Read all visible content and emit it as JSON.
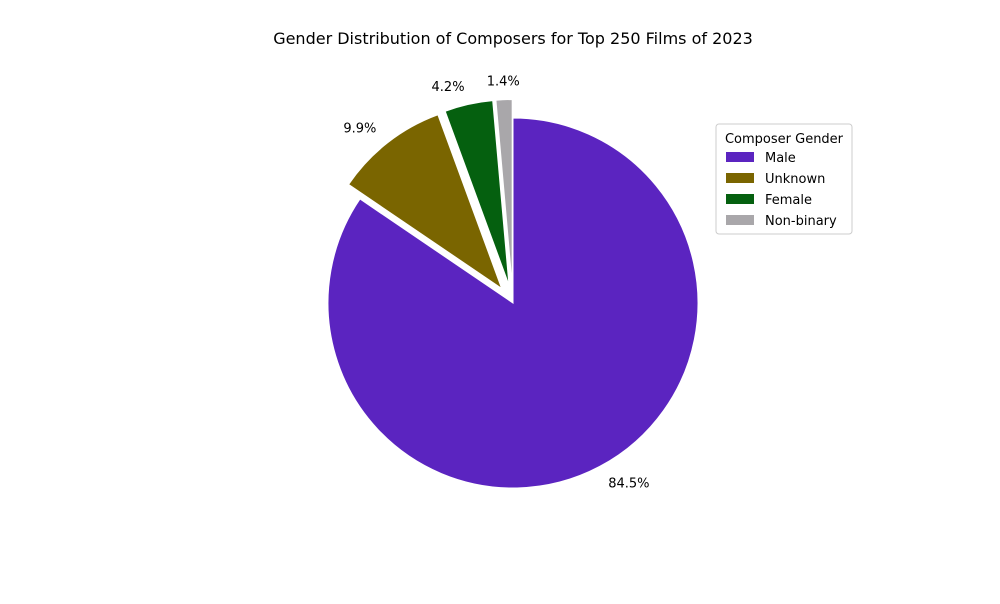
{
  "chart_data": {
    "type": "pie",
    "title": "Gender Distribution of Composers for Top 250 Films of 2023",
    "categories": [
      "Male",
      "Unknown",
      "Female",
      "Non-binary"
    ],
    "values": [
      84.5,
      9.9,
      4.2,
      1.4
    ],
    "labels": [
      "84.5%",
      "9.9%",
      "4.2%",
      "1.4%"
    ],
    "colors": [
      "#5b24c0",
      "#7a6500",
      "#05600f",
      "#a9a7aa"
    ],
    "start_angle": "12 o'clock",
    "direction": "clockwise",
    "exploded": true,
    "legend": {
      "title": "Composer Gender",
      "placement": "right",
      "entries": [
        "Male",
        "Unknown",
        "Female",
        "Non-binary"
      ]
    }
  }
}
